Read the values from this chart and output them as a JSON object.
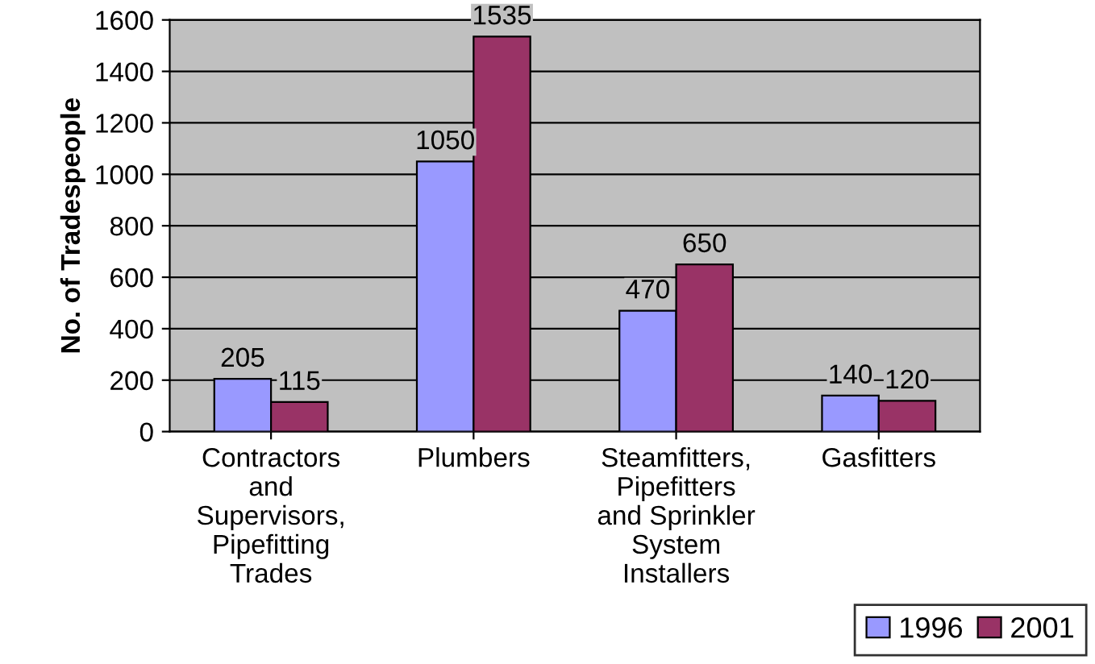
{
  "chart_data": {
    "type": "bar",
    "ylabel": "No. of Tradespeople",
    "categories": [
      "Contractors\nand\nSupervisors,\nPipefitting\nTrades",
      "Plumbers",
      "Steamfitters,\nPipefitters\nand Sprinkler\nSystem\nInstallers",
      "Gasfitters"
    ],
    "series": [
      {
        "name": "1996",
        "color": "#9999ff",
        "values": [
          205,
          1050,
          470,
          140
        ]
      },
      {
        "name": "2001",
        "color": "#993366",
        "values": [
          115,
          1535,
          650,
          120
        ]
      }
    ],
    "ylim": [
      0,
      1600
    ],
    "yticks": [
      0,
      200,
      400,
      600,
      800,
      1000,
      1200,
      1400,
      1600
    ],
    "grid": "y",
    "legend": "bottom right",
    "data_labels": true
  }
}
